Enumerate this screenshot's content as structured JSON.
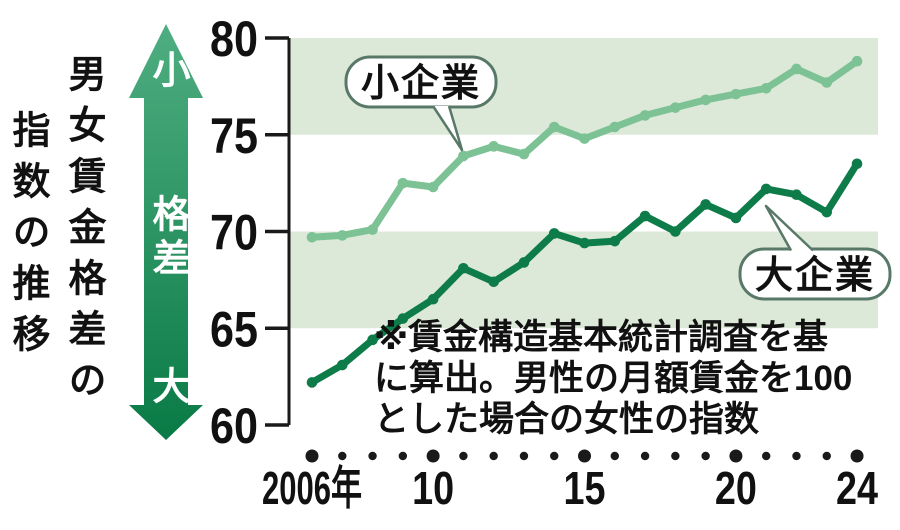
{
  "title": {
    "column1": "男女賃金格差の",
    "column2": "指数の推移"
  },
  "gap_arrow": {
    "top": "小",
    "middle": "格差",
    "bottom": "大"
  },
  "note": {
    "line1": "※賃金構造基本統計調査を基",
    "line2": "に算出。男性の月額賃金を100",
    "line3": "とした場合の女性の指数"
  },
  "chart_data": {
    "type": "line",
    "title": "男女賃金格差の指数の推移",
    "x": [
      2006,
      2007,
      2008,
      2009,
      2010,
      2011,
      2012,
      2013,
      2014,
      2015,
      2016,
      2017,
      2018,
      2019,
      2020,
      2021,
      2022,
      2023,
      2024
    ],
    "x_tick_labels": [
      {
        "x": 2006,
        "label": "2006年"
      },
      {
        "x": 2010,
        "label": "10"
      },
      {
        "x": 2015,
        "label": "15"
      },
      {
        "x": 2020,
        "label": "20"
      },
      {
        "x": 2024,
        "label": "24"
      }
    ],
    "ylim": [
      60,
      80
    ],
    "y_ticks": [
      80,
      75,
      70,
      65,
      60
    ],
    "shaded_bands": [
      [
        75,
        80
      ],
      [
        65,
        70
      ]
    ],
    "band_color": "#dce8d8",
    "axis_color": "#1a1a1a",
    "series": [
      {
        "name": "小企業",
        "color": "#7cc294",
        "values": [
          69.7,
          69.8,
          70.1,
          72.5,
          72.3,
          73.9,
          74.4,
          74.0,
          75.4,
          74.8,
          75.4,
          76.0,
          76.4,
          76.8,
          77.1,
          77.4,
          78.4,
          77.7,
          78.8
        ]
      },
      {
        "name": "大企業",
        "color": "#0e7c49",
        "values": [
          62.2,
          63.1,
          64.4,
          65.5,
          66.5,
          68.1,
          67.4,
          68.4,
          69.9,
          69.4,
          69.5,
          70.8,
          70.0,
          71.4,
          70.7,
          72.2,
          71.9,
          71.0,
          73.5
        ]
      }
    ],
    "legend_position": "on-chart-bubbles"
  }
}
